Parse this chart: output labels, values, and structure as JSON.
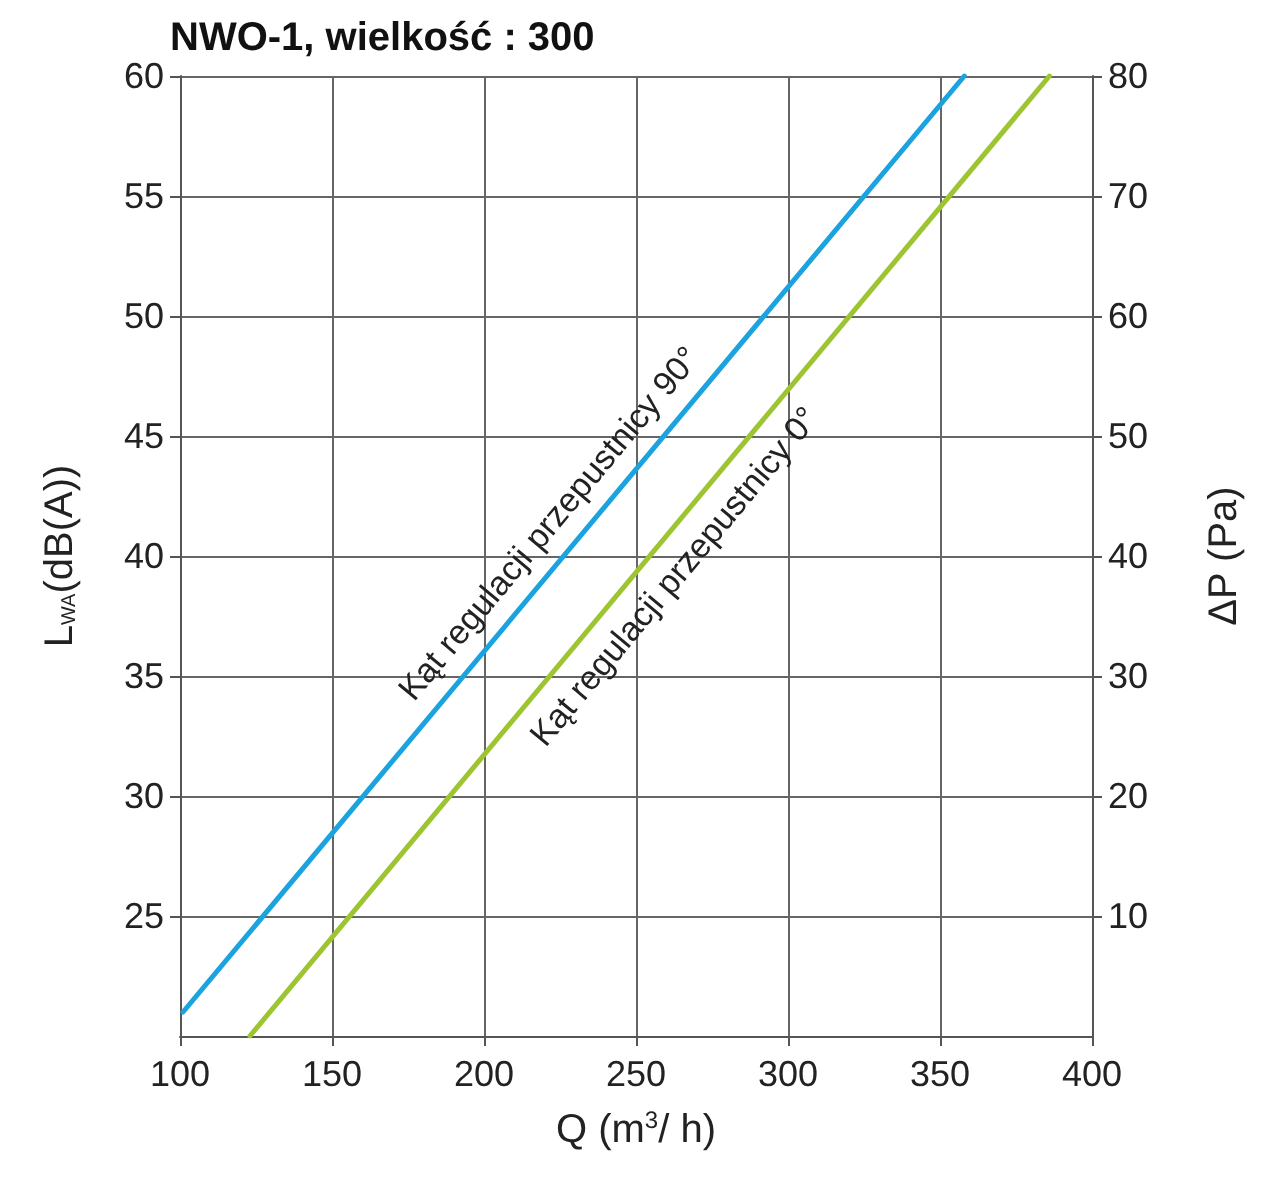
{
  "chart_data": {
    "type": "line",
    "title": "NWO-1, wielkość : 300",
    "xlabel": "Q (m$^{3}$/ h)",
    "ylabel": "L$_{WA}$(dB(A))",
    "y2label": "ΔP (Pa)",
    "series": [
      {
        "color": "#1ba3df",
        "x": [
          101,
          358
        ],
        "values": [
          21,
          60
        ]
      },
      {
        "color": "#9dc431",
        "x": [
          123,
          386
        ],
        "values": [
          20,
          60
        ]
      }
    ],
    "xlim": [
      100,
      400
    ],
    "xticks": [
      100,
      150,
      200,
      250,
      300,
      350,
      400
    ],
    "ylim": [
      20,
      60
    ],
    "yticks": [
      25,
      30,
      35,
      40,
      45,
      50,
      55,
      60
    ],
    "y2lim": [
      0,
      80
    ],
    "y2ticks": [
      10,
      20,
      30,
      40,
      50,
      60,
      70,
      80
    ],
    "annotations": [
      "Kąt regulacji przepustnicy 90°",
      "Kąt regulacji przepustnicy 0°"
    ],
    "grid": true,
    "marker": "none",
    "line_style": "solid"
  }
}
